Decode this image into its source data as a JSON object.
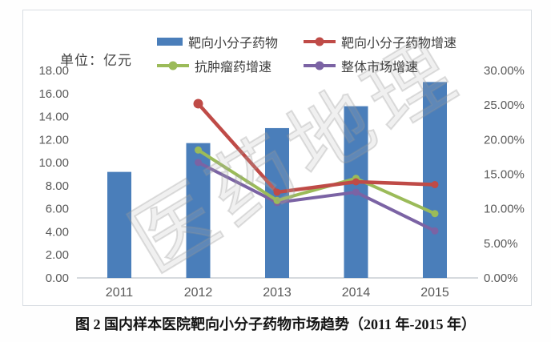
{
  "page": {
    "caption": "图 2 国内样本医院靶向小分子药物市场趋势（2011 年-2015 年）",
    "watermark": "医药地理"
  },
  "chart": {
    "unit_label": "单位：亿元",
    "legend": {
      "items": [
        {
          "label": "靶向小分子药物",
          "type": "bar",
          "color": "#4a7eba"
        },
        {
          "label": "靶向小分子药物增速",
          "type": "line",
          "color": "#bf4b47"
        },
        {
          "label": "抗肿瘤药增速",
          "type": "line",
          "color": "#9bbb59"
        },
        {
          "label": "整体市场增速",
          "type": "line",
          "color": "#7b63a4"
        }
      ]
    }
  },
  "chart_data": {
    "type": "combo-bar-line",
    "title": "图 2 国内样本医院靶向小分子药物市场趋势（2011 年-2015 年）",
    "categories": [
      "2011",
      "2012",
      "2013",
      "2014",
      "2015"
    ],
    "bar_series": {
      "name": "靶向小分子药物",
      "unit": "亿元",
      "axis": "left",
      "color": "#4a7eba",
      "values": [
        9.2,
        11.7,
        13.0,
        14.9,
        17.0
      ]
    },
    "line_series": [
      {
        "name": "靶向小分子药物增速",
        "axis": "right",
        "color": "#bf4b47",
        "values": [
          null,
          25.2,
          12.4,
          13.9,
          13.5
        ]
      },
      {
        "name": "抗肿瘤药增速",
        "axis": "right",
        "color": "#9bbb59",
        "values": [
          null,
          18.5,
          11.2,
          14.4,
          9.3
        ]
      },
      {
        "name": "整体市场增速",
        "axis": "right",
        "color": "#7b63a4",
        "values": [
          null,
          16.7,
          10.9,
          12.4,
          6.8
        ]
      }
    ],
    "left_axis": {
      "label": "单位：亿元",
      "min": 0,
      "max": 18,
      "step": 2,
      "decimals": 2,
      "suffix": ""
    },
    "right_axis": {
      "min": 0,
      "max": 30,
      "step": 5,
      "decimals": 2,
      "suffix": "%"
    },
    "grid": false,
    "legend_position": "top",
    "axis_text_color": "#595959",
    "axis_line_color": "#c9ced4"
  }
}
